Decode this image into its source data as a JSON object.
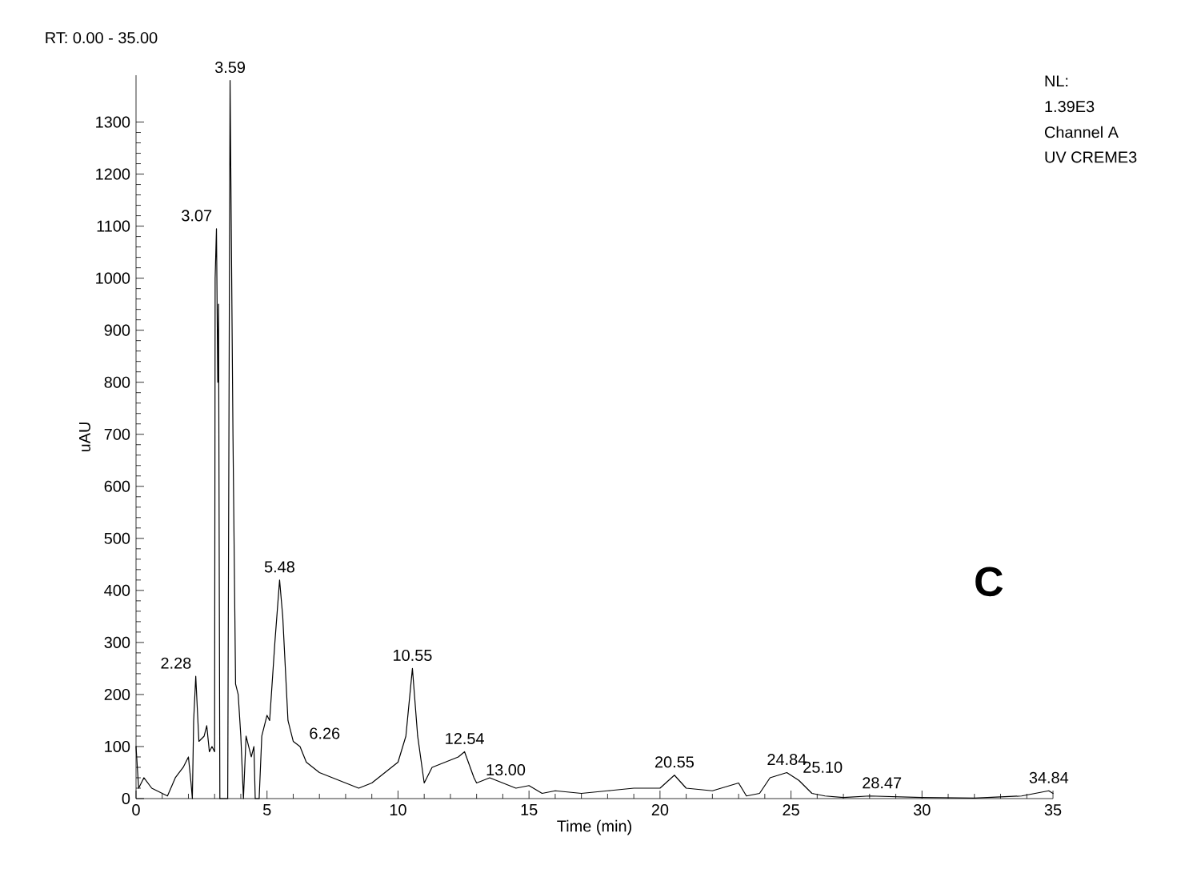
{
  "chart_data": {
    "type": "line",
    "xlabel": "Time (min)",
    "ylabel": "uAU",
    "xlim": [
      0,
      35
    ],
    "ylim": [
      0,
      1390
    ],
    "xticks": [
      0,
      5,
      10,
      15,
      20,
      25,
      30,
      35
    ],
    "yticks": [
      0,
      100,
      200,
      300,
      400,
      500,
      600,
      700,
      800,
      900,
      1000,
      1100,
      1200,
      1300
    ],
    "grid": false,
    "marker": "none",
    "line_style": "solid",
    "series": [
      {
        "color": "#000000",
        "x": [
          0,
          0.1,
          0.3,
          0.6,
          1.0,
          1.2,
          1.5,
          1.8,
          2.0,
          2.1,
          2.15,
          2.2,
          2.28,
          2.4,
          2.6,
          2.7,
          2.8,
          2.9,
          3.0,
          3.02,
          3.07,
          3.12,
          3.15,
          3.2,
          3.5,
          3.59,
          3.7,
          3.8,
          3.9,
          4.0,
          4.1,
          4.2,
          4.4,
          4.5,
          4.55,
          4.7,
          4.8,
          5.0,
          5.1,
          5.3,
          5.48,
          5.6,
          5.8,
          6.0,
          6.26,
          6.5,
          7,
          7.5,
          8,
          8.5,
          9,
          9.5,
          10,
          10.3,
          10.55,
          10.75,
          11.0,
          11.3,
          11.8,
          12.3,
          12.54,
          12.9,
          13.0,
          13.5,
          14,
          14.5,
          15,
          15.5,
          16,
          17,
          18,
          19,
          20,
          20.55,
          21,
          22,
          23,
          23.3,
          23.8,
          24.2,
          24.84,
          25.3,
          25.8,
          26.3,
          27,
          28,
          30,
          32,
          33.8,
          34.84,
          35
        ],
        "values": [
          100,
          20,
          40,
          20,
          10,
          5,
          40,
          60,
          80,
          30,
          0,
          150,
          235,
          110,
          120,
          140,
          90,
          100,
          90,
          1000,
          1095,
          800,
          950,
          0,
          0,
          1380,
          700,
          220,
          200,
          120,
          0,
          120,
          80,
          100,
          0,
          0,
          120,
          160,
          150,
          300,
          420,
          350,
          150,
          110,
          100,
          70,
          50,
          40,
          30,
          20,
          30,
          50,
          70,
          120,
          250,
          120,
          30,
          60,
          70,
          80,
          90,
          40,
          30,
          40,
          30,
          20,
          25,
          10,
          15,
          10,
          15,
          20,
          20,
          45,
          20,
          15,
          30,
          5,
          10,
          40,
          50,
          35,
          10,
          5,
          2,
          5,
          2,
          1,
          5,
          15,
          10
        ]
      }
    ],
    "annotations": [
      "RT: 0.00 - 35.00",
      "NL:",
      "1.39E3",
      "Channel A",
      "UV CREME3",
      "C",
      {
        "text": "2.28",
        "x": 2.28,
        "y": 235
      },
      {
        "text": "3.07",
        "x": 3.07,
        "y": 1095
      },
      {
        "text": "3.59",
        "x": 3.59,
        "y": 1380
      },
      {
        "text": "5.48",
        "x": 5.48,
        "y": 420
      },
      {
        "text": "6.26",
        "x": 6.26,
        "y": 100
      },
      {
        "text": "10.55",
        "x": 10.55,
        "y": 250
      },
      {
        "text": "12.54",
        "x": 12.54,
        "y": 90
      },
      {
        "text": "13.00",
        "x": 13.0,
        "y": 30
      },
      {
        "text": "20.55",
        "x": 20.55,
        "y": 45
      },
      {
        "text": "24.84",
        "x": 24.84,
        "y": 50
      },
      {
        "text": "25.10",
        "x": 25.1,
        "y": 35
      },
      {
        "text": "28.47",
        "x": 28.47,
        "y": 5
      },
      {
        "text": "34.84",
        "x": 34.84,
        "y": 15
      }
    ]
  }
}
